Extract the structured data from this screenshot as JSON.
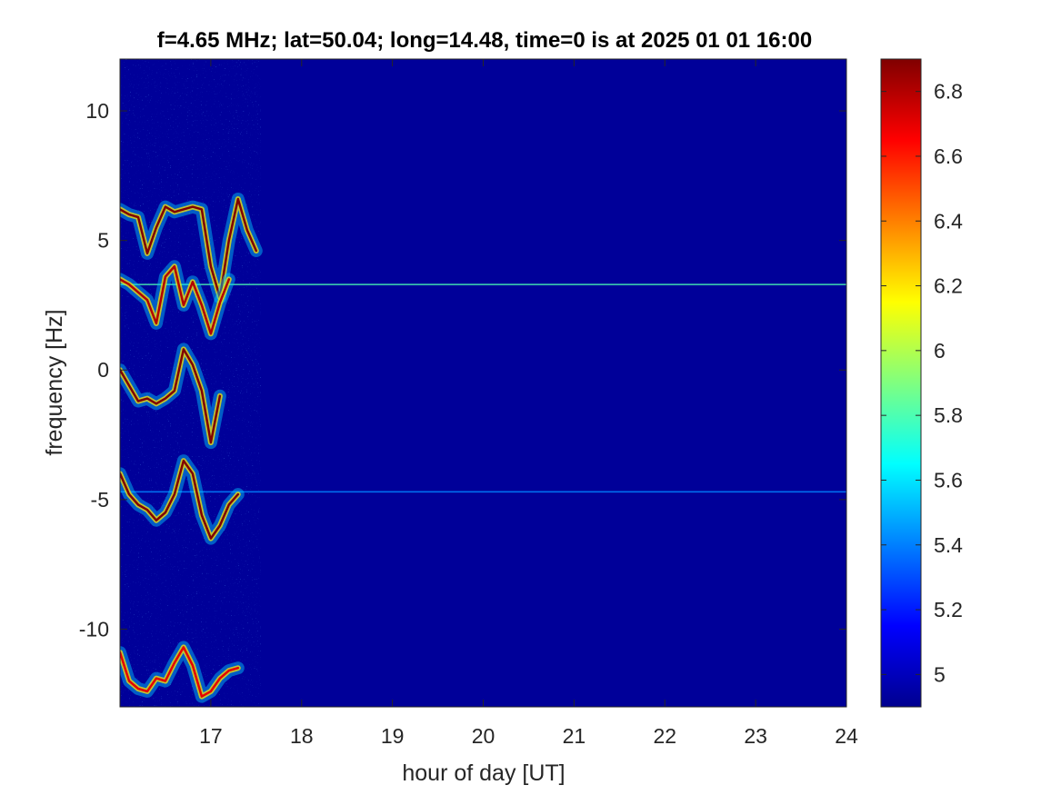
{
  "chart_data": {
    "type": "heatmap",
    "title": "f=4.65 MHz;  lat=50.04; long=14.48, time=0 is at 2025 01 01 16:00",
    "xlabel": "hour of day [UT]",
    "ylabel": "frequency [Hz]",
    "xlim": [
      16,
      24
    ],
    "ylim": [
      -13,
      12
    ],
    "x_ticks": [
      17,
      18,
      19,
      20,
      21,
      22,
      23,
      24
    ],
    "x_tick_labels": [
      "17",
      "18",
      "19",
      "20",
      "21",
      "22",
      "23",
      "24"
    ],
    "y_ticks": [
      10,
      5,
      0,
      -5,
      -10
    ],
    "y_tick_labels": [
      "10",
      "5",
      "0",
      "-5",
      "-10"
    ],
    "colorbar": {
      "colormap": "jet",
      "range": [
        4.9,
        6.9
      ],
      "ticks": [
        6.8,
        6.6,
        6.4,
        6.2,
        6,
        5.8,
        5.6,
        5.4,
        5.2,
        5
      ],
      "tick_labels": [
        "6.8",
        "6.6",
        "6.4",
        "6.2",
        "6",
        "5.8",
        "5.6",
        "5.4",
        "5.2",
        "5"
      ]
    },
    "background_value": 4.95,
    "traces": [
      {
        "name": "",
        "value": 6.9,
        "points": [
          [
            16.0,
            6.2
          ],
          [
            16.1,
            6.0
          ],
          [
            16.2,
            5.9
          ],
          [
            16.3,
            4.5
          ],
          [
            16.4,
            5.5
          ],
          [
            16.5,
            6.3
          ],
          [
            16.6,
            6.1
          ],
          [
            16.8,
            6.3
          ],
          [
            16.9,
            6.2
          ],
          [
            17.0,
            4.0
          ],
          [
            17.1,
            2.8
          ],
          [
            17.2,
            5.0
          ],
          [
            17.3,
            6.6
          ],
          [
            17.4,
            5.4
          ],
          [
            17.5,
            4.6
          ]
        ]
      },
      {
        "name": "",
        "value": 6.8,
        "points": [
          [
            16.0,
            3.5
          ],
          [
            16.1,
            3.3
          ],
          [
            16.2,
            3.0
          ],
          [
            16.3,
            2.7
          ],
          [
            16.4,
            1.8
          ],
          [
            16.5,
            3.6
          ],
          [
            16.6,
            4.0
          ],
          [
            16.7,
            2.5
          ],
          [
            16.8,
            3.4
          ],
          [
            16.9,
            2.5
          ],
          [
            17.0,
            1.4
          ],
          [
            17.1,
            2.6
          ],
          [
            17.2,
            3.5
          ]
        ]
      },
      {
        "name": "",
        "value": 6.9,
        "points": [
          [
            16.0,
            0.0
          ],
          [
            16.1,
            -0.6
          ],
          [
            16.2,
            -1.2
          ],
          [
            16.3,
            -1.1
          ],
          [
            16.4,
            -1.3
          ],
          [
            16.5,
            -1.1
          ],
          [
            16.6,
            -0.8
          ],
          [
            16.7,
            0.8
          ],
          [
            16.8,
            0.2
          ],
          [
            16.9,
            -0.8
          ],
          [
            17.0,
            -2.8
          ],
          [
            17.1,
            -1.0
          ]
        ]
      },
      {
        "name": "",
        "value": 6.9,
        "points": [
          [
            16.0,
            -4.0
          ],
          [
            16.1,
            -4.8
          ],
          [
            16.2,
            -5.2
          ],
          [
            16.3,
            -5.4
          ],
          [
            16.4,
            -5.8
          ],
          [
            16.5,
            -5.5
          ],
          [
            16.6,
            -4.8
          ],
          [
            16.7,
            -3.5
          ],
          [
            16.8,
            -4.0
          ],
          [
            16.9,
            -5.6
          ],
          [
            17.0,
            -6.5
          ],
          [
            17.1,
            -6.0
          ],
          [
            17.2,
            -5.2
          ],
          [
            17.3,
            -4.8
          ]
        ]
      },
      {
        "name": "",
        "value": 6.7,
        "points": [
          [
            16.0,
            -10.9
          ],
          [
            16.1,
            -12.0
          ],
          [
            16.2,
            -12.3
          ],
          [
            16.3,
            -12.4
          ],
          [
            16.4,
            -11.9
          ],
          [
            16.5,
            -12.0
          ],
          [
            16.6,
            -11.3
          ],
          [
            16.7,
            -10.7
          ],
          [
            16.8,
            -11.4
          ],
          [
            16.9,
            -12.6
          ],
          [
            17.0,
            -12.4
          ],
          [
            17.1,
            -11.9
          ],
          [
            17.2,
            -11.6
          ],
          [
            17.3,
            -11.5
          ]
        ]
      }
    ],
    "horizontal_lines": [
      {
        "y": 3.3,
        "value": 5.8,
        "x_start": 16,
        "x_end": 24
      },
      {
        "y": -4.7,
        "value": 5.4,
        "x_start": 16,
        "x_end": 24
      }
    ]
  }
}
